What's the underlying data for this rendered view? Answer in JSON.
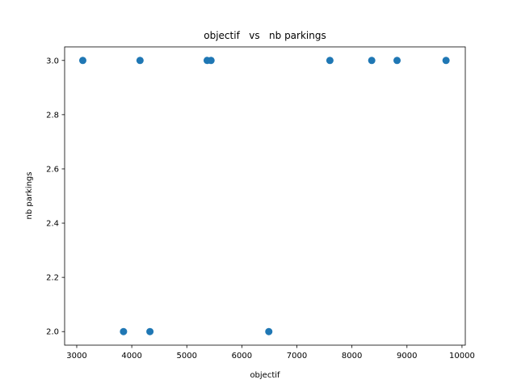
{
  "chart_data": {
    "type": "scatter",
    "title": "objectif   vs   nb parkings",
    "xlabel": "objectif",
    "ylabel": "nb parkings",
    "xlim": [
      2780,
      10060
    ],
    "ylim": [
      1.95,
      3.05
    ],
    "xticks": [
      3000,
      4000,
      5000,
      6000,
      7000,
      8000,
      9000,
      10000
    ],
    "xtick_labels": [
      "3000",
      "4000",
      "5000",
      "6000",
      "7000",
      "8000",
      "9000",
      "10000"
    ],
    "yticks": [
      2.0,
      2.2,
      2.4,
      2.6,
      2.8,
      3.0
    ],
    "ytick_labels": [
      "2.0",
      "2.2",
      "2.4",
      "2.6",
      "2.8",
      "3.0"
    ],
    "grid": false,
    "color": "#1f77b4",
    "series": [
      {
        "points": [
          {
            "x": 3110,
            "y": 3
          },
          {
            "x": 4150,
            "y": 3
          },
          {
            "x": 5370,
            "y": 3
          },
          {
            "x": 5440,
            "y": 3
          },
          {
            "x": 7600,
            "y": 3
          },
          {
            "x": 8360,
            "y": 3
          },
          {
            "x": 8820,
            "y": 3
          },
          {
            "x": 9710,
            "y": 3
          },
          {
            "x": 3850,
            "y": 2
          },
          {
            "x": 4330,
            "y": 2
          },
          {
            "x": 6490,
            "y": 2
          }
        ]
      }
    ]
  }
}
